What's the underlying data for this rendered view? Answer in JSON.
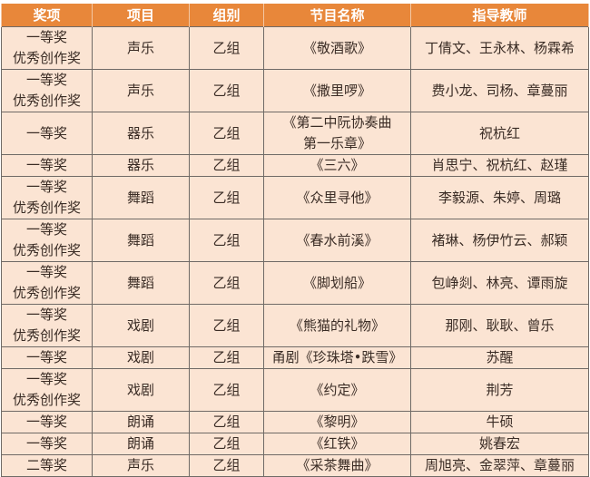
{
  "colors": {
    "header_bg": "#e8873a",
    "header_text": "#ffffff",
    "body_bg": "#fbe4d3",
    "border": "#6f6a66"
  },
  "headers": [
    "奖项",
    "项目",
    "组别",
    "节目名称",
    "指导教师"
  ],
  "rows": [
    {
      "award": [
        "一等奖",
        "优秀创作奖"
      ],
      "category": "声乐",
      "group": "乙组",
      "title": [
        "《敬酒歌》"
      ],
      "teachers": "丁倩文、王永林、杨霖希"
    },
    {
      "award": [
        "一等奖",
        "优秀创作奖"
      ],
      "category": "声乐",
      "group": "乙组",
      "title": [
        "《撒里啰》"
      ],
      "teachers": "费小龙、司杨、章蔓丽"
    },
    {
      "award": [
        "一等奖"
      ],
      "category": "器乐",
      "group": "乙组",
      "title": [
        "《第二中阮协奏曲",
        "第一乐章》"
      ],
      "teachers": "祝杭红"
    },
    {
      "award": [
        "一等奖"
      ],
      "category": "器乐",
      "group": "乙组",
      "title": [
        "《三六》"
      ],
      "teachers": "肖思宁、祝杭红、赵瑾"
    },
    {
      "award": [
        "一等奖",
        "优秀创作奖"
      ],
      "category": "舞蹈",
      "group": "乙组",
      "title": [
        "《众里寻他》"
      ],
      "teachers": "李毅源、朱婷、周璐"
    },
    {
      "award": [
        "一等奖",
        "优秀创作奖"
      ],
      "category": "舞蹈",
      "group": "乙组",
      "title": [
        "《春水前溪》"
      ],
      "teachers": "褚琳、杨伊竹云、郝颖"
    },
    {
      "award": [
        "一等奖",
        "优秀创作奖"
      ],
      "category": "舞蹈",
      "group": "乙组",
      "title": [
        "《脚划船》"
      ],
      "teachers": "包峥剡、林亮、谭雨旋"
    },
    {
      "award": [
        "一等奖",
        "优秀创作奖"
      ],
      "category": "戏剧",
      "group": "乙组",
      "title": [
        "《熊猫的礼物》"
      ],
      "teachers": "那刚、耿耿、曾乐"
    },
    {
      "award": [
        "一等奖"
      ],
      "category": "戏剧",
      "group": "乙组",
      "title": [
        "甬剧《珍珠塔•跌雪》"
      ],
      "teachers": "苏醒"
    },
    {
      "award": [
        "一等奖",
        "优秀创作奖"
      ],
      "category": "戏剧",
      "group": "乙组",
      "title": [
        "《约定》"
      ],
      "teachers": "荆芳"
    },
    {
      "award": [
        "一等奖"
      ],
      "category": "朗诵",
      "group": "乙组",
      "title": [
        "《黎明》"
      ],
      "teachers": "牛硕"
    },
    {
      "award": [
        "一等奖"
      ],
      "category": "朗诵",
      "group": "乙组",
      "title": [
        "《红铁》"
      ],
      "teachers": "姚春宏"
    },
    {
      "award": [
        "二等奖"
      ],
      "category": "声乐",
      "group": "乙组",
      "title": [
        "《采茶舞曲》"
      ],
      "teachers": "周旭亮、金翠萍、章蔓丽"
    }
  ]
}
